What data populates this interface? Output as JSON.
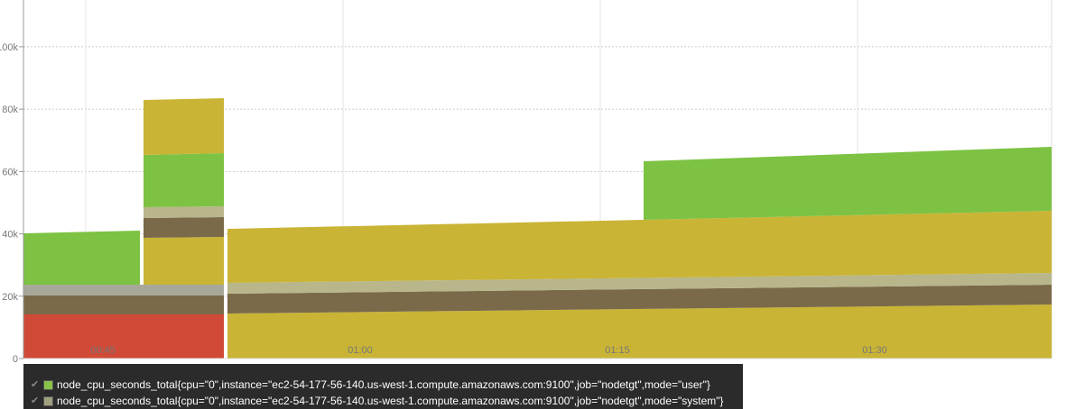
{
  "chart_data": {
    "type": "area",
    "stacked": true,
    "x_ticks": [
      "00:45",
      "01:00",
      "01:15",
      "01:30"
    ],
    "y_ticks": [
      "0",
      "20k",
      "40k",
      "60k",
      "80k",
      "100k"
    ],
    "ylim": [
      0,
      115000
    ],
    "grid": true,
    "legend_position": "bottom-left",
    "series": [
      {
        "name": "node_cpu_seconds_total{cpu=\"0\",instance=\"ec2-54-177-56-140.us-west-1.compute.amazonaws.com:9100\",job=\"nodetgt\",mode=\"user\"}",
        "color": "#8bc34a"
      },
      {
        "name": "node_cpu_seconds_total{cpu=\"0\",instance=\"ec2-54-177-56-140.us-west-1.compute.amazonaws.com:9100\",job=\"nodetgt\",mode=\"system\"}",
        "color": "#a0a080"
      }
    ]
  }
}
